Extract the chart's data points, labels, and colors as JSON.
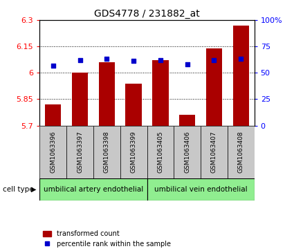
{
  "title": "GDS4778 / 231882_at",
  "samples": [
    "GSM1063396",
    "GSM1063397",
    "GSM1063398",
    "GSM1063399",
    "GSM1063405",
    "GSM1063406",
    "GSM1063407",
    "GSM1063408"
  ],
  "red_values": [
    5.82,
    6.0,
    6.06,
    5.94,
    6.07,
    5.76,
    6.14,
    6.27
  ],
  "blue_values": [
    57,
    62,
    63,
    61,
    62,
    58,
    62,
    63
  ],
  "ylim_left": [
    5.7,
    6.3
  ],
  "ylim_right": [
    0,
    100
  ],
  "yticks_left": [
    5.7,
    5.85,
    6.0,
    6.15,
    6.3
  ],
  "yticks_right": [
    0,
    25,
    50,
    75,
    100
  ],
  "ytick_labels_left": [
    "5.7",
    "5.85",
    "6",
    "6.15",
    "6.3"
  ],
  "ytick_labels_right": [
    "0",
    "25",
    "50",
    "75",
    "100%"
  ],
  "group1_label": "umbilical artery endothelial",
  "group2_label": "umbilical vein endothelial",
  "group1_indices": [
    0,
    1,
    2,
    3
  ],
  "group2_indices": [
    4,
    5,
    6,
    7
  ],
  "cell_type_label": "cell type",
  "legend_red": "transformed count",
  "legend_blue": "percentile rank within the sample",
  "bar_color": "#AA0000",
  "dot_color": "#0000CC",
  "group_bg_color": "#90EE90",
  "sample_bg_color": "#C8C8C8",
  "plot_bg_color": "#FFFFFF",
  "bar_bottom": 5.7,
  "grid_lines": [
    5.85,
    6.0,
    6.15
  ],
  "bar_width": 0.6
}
